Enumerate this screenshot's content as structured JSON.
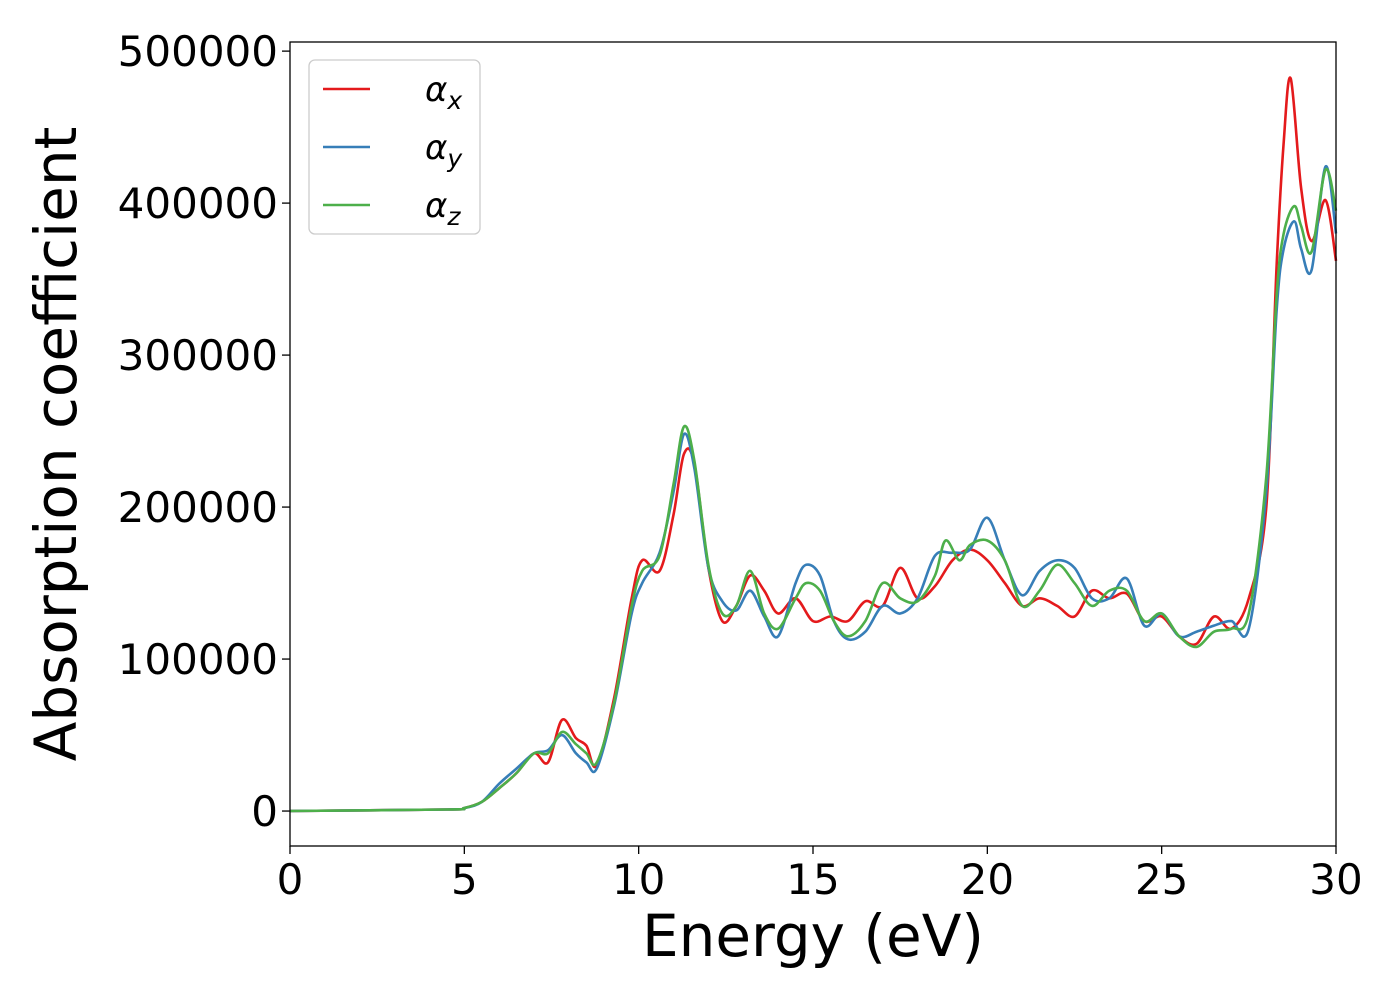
{
  "chart_data": {
    "type": "line",
    "title": "",
    "xlabel": "Energy (eV)",
    "ylabel": "Absorption coefficient",
    "xlim": [
      0,
      30
    ],
    "ylim": [
      -23000,
      506000
    ],
    "xticks": [
      0,
      5,
      10,
      15,
      20,
      25,
      30
    ],
    "xtick_labels": [
      "0",
      "5",
      "10",
      "15",
      "20",
      "25",
      "30"
    ],
    "yticks": [
      0,
      100000,
      200000,
      300000,
      400000,
      500000
    ],
    "ytick_labels": [
      "0",
      "100000",
      "200000",
      "300000",
      "400000",
      "500000"
    ],
    "grid": false,
    "legend": {
      "position": "top-left"
    },
    "series": [
      {
        "name": "α_x",
        "label_base": "α",
        "label_sub": "x",
        "color": "#e41a1c",
        "x": [
          0,
          4.5,
          5.0,
          5.5,
          6.0,
          6.5,
          7.0,
          7.4,
          7.8,
          8.2,
          8.5,
          8.8,
          9.3,
          9.8,
          10.1,
          10.6,
          11.0,
          11.3,
          11.6,
          12.0,
          12.4,
          12.8,
          13.2,
          13.6,
          14.0,
          14.5,
          15.0,
          15.5,
          16.0,
          16.5,
          17.0,
          17.5,
          18.0,
          18.5,
          19.0,
          19.5,
          20.0,
          20.5,
          21.0,
          21.5,
          22.0,
          22.5,
          23.0,
          23.5,
          24.0,
          24.5,
          25.0,
          25.5,
          26.0,
          26.5,
          27.0,
          27.5,
          28.0,
          28.3,
          28.5,
          28.7,
          29.0,
          29.3,
          29.7,
          30.0
        ],
        "y": [
          0,
          1000,
          2000,
          6000,
          15000,
          25000,
          38000,
          32000,
          60000,
          48000,
          43000,
          30000,
          75000,
          140000,
          165000,
          158000,
          195000,
          235000,
          228000,
          160000,
          125000,
          135000,
          155000,
          145000,
          130000,
          140000,
          125000,
          128000,
          125000,
          138000,
          135000,
          160000,
          140000,
          148000,
          165000,
          172000,
          165000,
          150000,
          135000,
          140000,
          135000,
          128000,
          145000,
          140000,
          143000,
          125000,
          128000,
          115000,
          110000,
          128000,
          120000,
          140000,
          200000,
          360000,
          440000,
          482000,
          410000,
          375000,
          402000,
          362000
        ]
      },
      {
        "name": "α_y",
        "label_base": "α",
        "label_sub": "y",
        "color": "#377eb8",
        "x": [
          0,
          4.5,
          5.0,
          5.5,
          6.0,
          6.5,
          7.0,
          7.4,
          7.8,
          8.2,
          8.5,
          8.8,
          9.3,
          9.8,
          10.1,
          10.6,
          11.0,
          11.3,
          11.6,
          12.0,
          12.4,
          12.8,
          13.2,
          13.6,
          14.0,
          14.5,
          14.8,
          15.2,
          15.6,
          16.0,
          16.5,
          17.0,
          17.5,
          18.0,
          18.5,
          19.0,
          19.5,
          20.0,
          20.5,
          21.0,
          21.5,
          22.0,
          22.5,
          23.0,
          23.5,
          24.0,
          24.5,
          25.0,
          25.5,
          26.0,
          26.5,
          27.0,
          27.5,
          28.0,
          28.3,
          28.5,
          28.8,
          29.0,
          29.3,
          29.7,
          30.0
        ],
        "y": [
          0,
          1000,
          2000,
          6000,
          18000,
          28000,
          38000,
          40000,
          50000,
          38000,
          32000,
          28000,
          70000,
          130000,
          150000,
          170000,
          210000,
          248000,
          225000,
          160000,
          138000,
          132000,
          145000,
          128000,
          115000,
          150000,
          162000,
          155000,
          125000,
          113000,
          118000,
          135000,
          130000,
          140000,
          168000,
          170000,
          172000,
          193000,
          165000,
          142000,
          158000,
          165000,
          160000,
          140000,
          140000,
          153000,
          122000,
          130000,
          115000,
          118000,
          122000,
          125000,
          120000,
          210000,
          330000,
          370000,
          388000,
          370000,
          356000,
          424000,
          380000
        ]
      },
      {
        "name": "α_z",
        "label_base": "α",
        "label_sub": "z",
        "color": "#4daf4a",
        "x": [
          0,
          4.5,
          5.0,
          5.5,
          6.0,
          6.5,
          7.0,
          7.4,
          7.8,
          8.2,
          8.5,
          8.8,
          9.3,
          9.8,
          10.1,
          10.6,
          11.0,
          11.3,
          11.6,
          12.0,
          12.4,
          12.8,
          13.2,
          13.6,
          14.0,
          14.5,
          14.8,
          15.2,
          15.6,
          16.0,
          16.5,
          17.0,
          17.5,
          18.0,
          18.5,
          18.8,
          19.2,
          19.5,
          20.0,
          20.5,
          21.0,
          21.5,
          22.0,
          22.5,
          23.0,
          23.5,
          24.0,
          24.5,
          25.0,
          25.5,
          26.0,
          26.5,
          27.0,
          27.5,
          28.0,
          28.3,
          28.5,
          28.8,
          29.0,
          29.3,
          29.7,
          30.0
        ],
        "y": [
          0,
          1000,
          2000,
          6000,
          15000,
          25000,
          38000,
          38000,
          52000,
          44000,
          38000,
          32000,
          72000,
          135000,
          158000,
          168000,
          215000,
          253000,
          230000,
          162000,
          130000,
          135000,
          158000,
          130000,
          120000,
          140000,
          150000,
          145000,
          125000,
          115000,
          125000,
          150000,
          140000,
          138000,
          155000,
          178000,
          165000,
          175000,
          178000,
          165000,
          135000,
          145000,
          162000,
          150000,
          135000,
          145000,
          145000,
          125000,
          130000,
          115000,
          108000,
          118000,
          120000,
          130000,
          220000,
          340000,
          380000,
          398000,
          385000,
          368000,
          422000,
          395000
        ]
      }
    ]
  }
}
